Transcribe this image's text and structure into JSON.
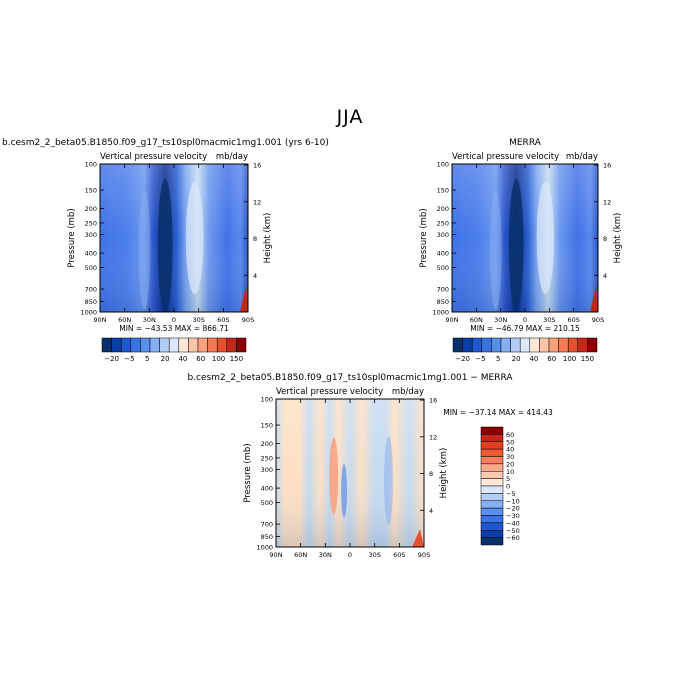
{
  "page": {
    "title": "JJA"
  },
  "colors": {
    "frame": "#000000",
    "cold_dark": "#08306b",
    "cold_mid": "#2a5fd0",
    "cold_light": "#6a96ee",
    "neutral_cool": "#c6dbef",
    "neutral_warm": "#fde0c5",
    "warm_mid": "#f08050",
    "warm_dark": "#8b0000"
  },
  "chart_data": [
    {
      "type": "heatmap",
      "id": "model",
      "title": "b.cesm2_2_beta05.B1850.f09_g17_ts10spl0macmic1mg1.001 (yrs 6-10)",
      "subtitle_left": "Vertical pressure velocity",
      "subtitle_right": "mb/day",
      "xlabel": "",
      "ylabel": "Pressure (mb)",
      "ylabel_right": "Height (km)",
      "x_ticks": [
        "90N",
        "60N",
        "30N",
        "0",
        "30S",
        "60S",
        "90S"
      ],
      "y_ticks": [
        "100",
        "150",
        "200",
        "250",
        "300",
        "400",
        "500",
        "700",
        "850",
        "1000"
      ],
      "y_right_ticks": [
        "16",
        "12",
        "8",
        "4"
      ],
      "ylim": [
        1000,
        100
      ],
      "min_max": "MIN = −43.53   MAX = 866.71",
      "colorbar": {
        "orientation": "horizontal",
        "labels": [
          "−20",
          "−5",
          "5",
          "20",
          "40",
          "60",
          "100",
          "150"
        ]
      }
    },
    {
      "type": "heatmap",
      "id": "obs",
      "title": "MERRA",
      "subtitle_left": "Vertical pressure velocity",
      "subtitle_right": "mb/day",
      "xlabel": "",
      "ylabel": "Pressure (mb)",
      "ylabel_right": "Height (km)",
      "x_ticks": [
        "90N",
        "60N",
        "30N",
        "0",
        "30S",
        "60S",
        "90S"
      ],
      "y_ticks": [
        "100",
        "150",
        "200",
        "250",
        "300",
        "400",
        "500",
        "700",
        "850",
        "1000"
      ],
      "y_right_ticks": [
        "16",
        "12",
        "8",
        "4"
      ],
      "ylim": [
        1000,
        100
      ],
      "min_max": "MIN = −46.79   MAX = 210.15",
      "colorbar": {
        "orientation": "horizontal",
        "labels": [
          "−20",
          "−5",
          "5",
          "20",
          "40",
          "60",
          "100",
          "150"
        ]
      }
    },
    {
      "type": "heatmap",
      "id": "diff",
      "title": "b.cesm2_2_beta05.B1850.f09_g17_ts10spl0macmic1mg1.001 − MERRA",
      "subtitle_left": "Vertical pressure velocity",
      "subtitle_right": "mb/day",
      "xlabel": "",
      "ylabel": "Pressure (mb)",
      "ylabel_right": "Height (km)",
      "x_ticks": [
        "90N",
        "60N",
        "30N",
        "0",
        "30S",
        "60S",
        "90S"
      ],
      "y_ticks": [
        "100",
        "150",
        "200",
        "250",
        "300",
        "400",
        "500",
        "700",
        "850",
        "1000"
      ],
      "y_right_ticks": [
        "16",
        "12",
        "8",
        "4"
      ],
      "ylim": [
        1000,
        100
      ],
      "min_max": "MIN = −37.14   MAX = 414.43",
      "colorbar": {
        "orientation": "vertical",
        "labels": [
          "60",
          "50",
          "40",
          "30",
          "20",
          "10",
          "5",
          "0",
          "−5",
          "−10",
          "−20",
          "−30",
          "−40",
          "−50",
          "−60"
        ]
      }
    }
  ]
}
